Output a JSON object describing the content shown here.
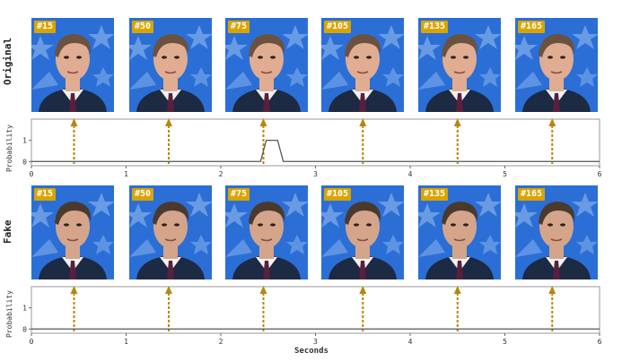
{
  "rows": {
    "original_label": "Original",
    "fake_label": "Fake"
  },
  "frames": [
    "#15",
    "#50",
    "#75",
    "#105",
    "#135",
    "#165"
  ],
  "colors": {
    "badge": "#d9a400",
    "arrow": "#b8860b",
    "sky": "#2b6fd6",
    "suit": "#1d2a44",
    "plot_line": "#555555"
  },
  "chart_data": [
    {
      "type": "line",
      "ylabel": "Probability",
      "xlabel": "",
      "x_ticks": [
        "0",
        "1",
        "2",
        "3",
        "4",
        "5",
        "6"
      ],
      "y_ticks": [
        "0",
        "1"
      ],
      "xlim": [
        0,
        6
      ],
      "ylim": [
        -0.2,
        2
      ],
      "x": [
        0,
        2.42,
        2.48,
        2.6,
        2.66,
        6
      ],
      "y": [
        0,
        0,
        1,
        1,
        0,
        0
      ],
      "frame_marker_times": [
        0.45,
        1.45,
        2.45,
        3.5,
        4.5,
        5.5
      ]
    },
    {
      "type": "line",
      "ylabel": "Probability",
      "xlabel": "Seconds",
      "x_ticks": [
        "0",
        "1",
        "2",
        "3",
        "4",
        "5",
        "6"
      ],
      "y_ticks": [
        "0",
        "1"
      ],
      "xlim": [
        0,
        6
      ],
      "ylim": [
        -0.2,
        2
      ],
      "x": [
        0,
        6
      ],
      "y": [
        0,
        0
      ],
      "frame_marker_times": [
        0.45,
        1.45,
        2.45,
        3.5,
        4.5,
        5.5
      ]
    }
  ]
}
